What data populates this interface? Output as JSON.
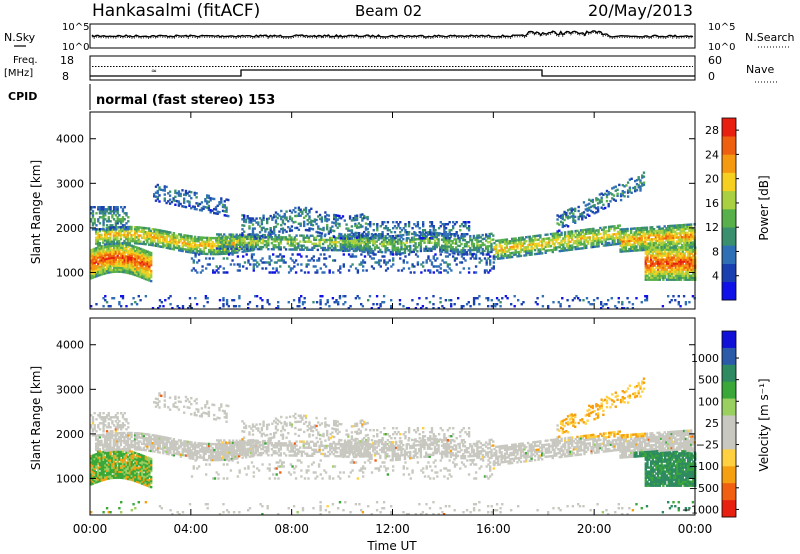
{
  "header": {
    "station": "Hankasalmi (fitACF)",
    "beam": "Beam 02",
    "date": "20/May/2013"
  },
  "status_panel": {
    "nsky_label": "N.Sky",
    "nsearch_label": "N.Search",
    "noise_ticks_left": [
      "10^5",
      "10^0"
    ],
    "noise_ticks_right": [
      "10^5",
      "10^0"
    ],
    "freq_label_1": "Freq.",
    "freq_label_2": "[MHz]",
    "freq_ticks": [
      "18",
      "8"
    ],
    "nave_label": "Nave",
    "nave_ticks": [
      "60",
      "0"
    ],
    "cpid_label": "CPID",
    "cpid_text": "normal (fast stereo) 153"
  },
  "colors": {
    "power_scale": [
      "#1010e8",
      "#1a3fb0",
      "#2f6fb5",
      "#3a8f6e",
      "#58b04a",
      "#a8d040",
      "#f5d020",
      "#f59a10",
      "#ee6010",
      "#e82010"
    ],
    "velocity_scale": [
      "#1010d8",
      "#2a5aa8",
      "#2e8a60",
      "#3aa838",
      "#9ad060",
      "#c8c8c0",
      "#c8c8c0",
      "#ffd040",
      "#f5a010",
      "#f06010",
      "#e82010"
    ]
  },
  "chart_data": [
    {
      "type": "heatmap",
      "panel": "power",
      "xlabel": "Time UT",
      "ylabel": "Slant Range [km]",
      "x_ticks": [
        "00:00",
        "04:00",
        "08:00",
        "12:00",
        "16:00",
        "20:00",
        "00:00"
      ],
      "y_ticks": [
        "1000",
        "2000",
        "3000",
        "4000"
      ],
      "xlim": [
        0,
        24
      ],
      "ylim": [
        180,
        4600
      ],
      "colorbar": {
        "label": "Power [dB]",
        "ticks": [
          "4",
          "8",
          "12",
          "16",
          "20",
          "24",
          "28"
        ],
        "range": [
          0,
          30
        ]
      }
    },
    {
      "type": "heatmap",
      "panel": "velocity",
      "xlabel": "Time UT",
      "ylabel": "Slant Range [km]",
      "x_ticks": [
        "00:00",
        "04:00",
        "08:00",
        "12:00",
        "16:00",
        "20:00",
        "00:00"
      ],
      "y_ticks": [
        "1000",
        "2000",
        "3000",
        "4000"
      ],
      "xlim": [
        0,
        24
      ],
      "ylim": [
        180,
        4600
      ],
      "colorbar": {
        "label": "Velocity [m s⁻¹]",
        "ticks": [
          "1000",
          "500",
          "100",
          "25",
          "−25",
          "−100",
          "−500",
          "−1000"
        ]
      }
    }
  ]
}
